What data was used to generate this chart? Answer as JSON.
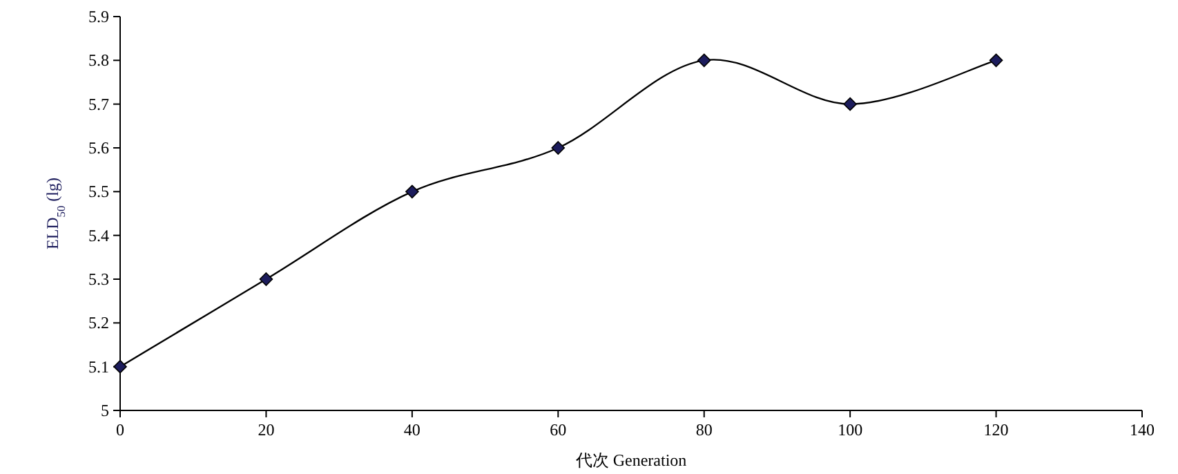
{
  "chart_data": {
    "type": "line",
    "xlabel": "代次 Generation",
    "ylabel": "ELD$_{50}$ (lg)",
    "x": [
      0,
      20,
      40,
      60,
      80,
      100,
      120
    ],
    "series": [
      {
        "color": "#1c1c5c",
        "values": [
          5.1,
          5.3,
          5.5,
          5.6,
          5.8,
          5.7,
          5.8
        ]
      }
    ],
    "xlim": [
      0,
      140
    ],
    "ylim": [
      5,
      5.9
    ],
    "xticks": [
      0,
      20,
      40,
      60,
      80,
      100,
      120,
      140
    ],
    "yticks": [
      5,
      5.1,
      5.2,
      5.3,
      5.4,
      5.5,
      5.6,
      5.7,
      5.8,
      5.9
    ],
    "marker": "diamond"
  }
}
